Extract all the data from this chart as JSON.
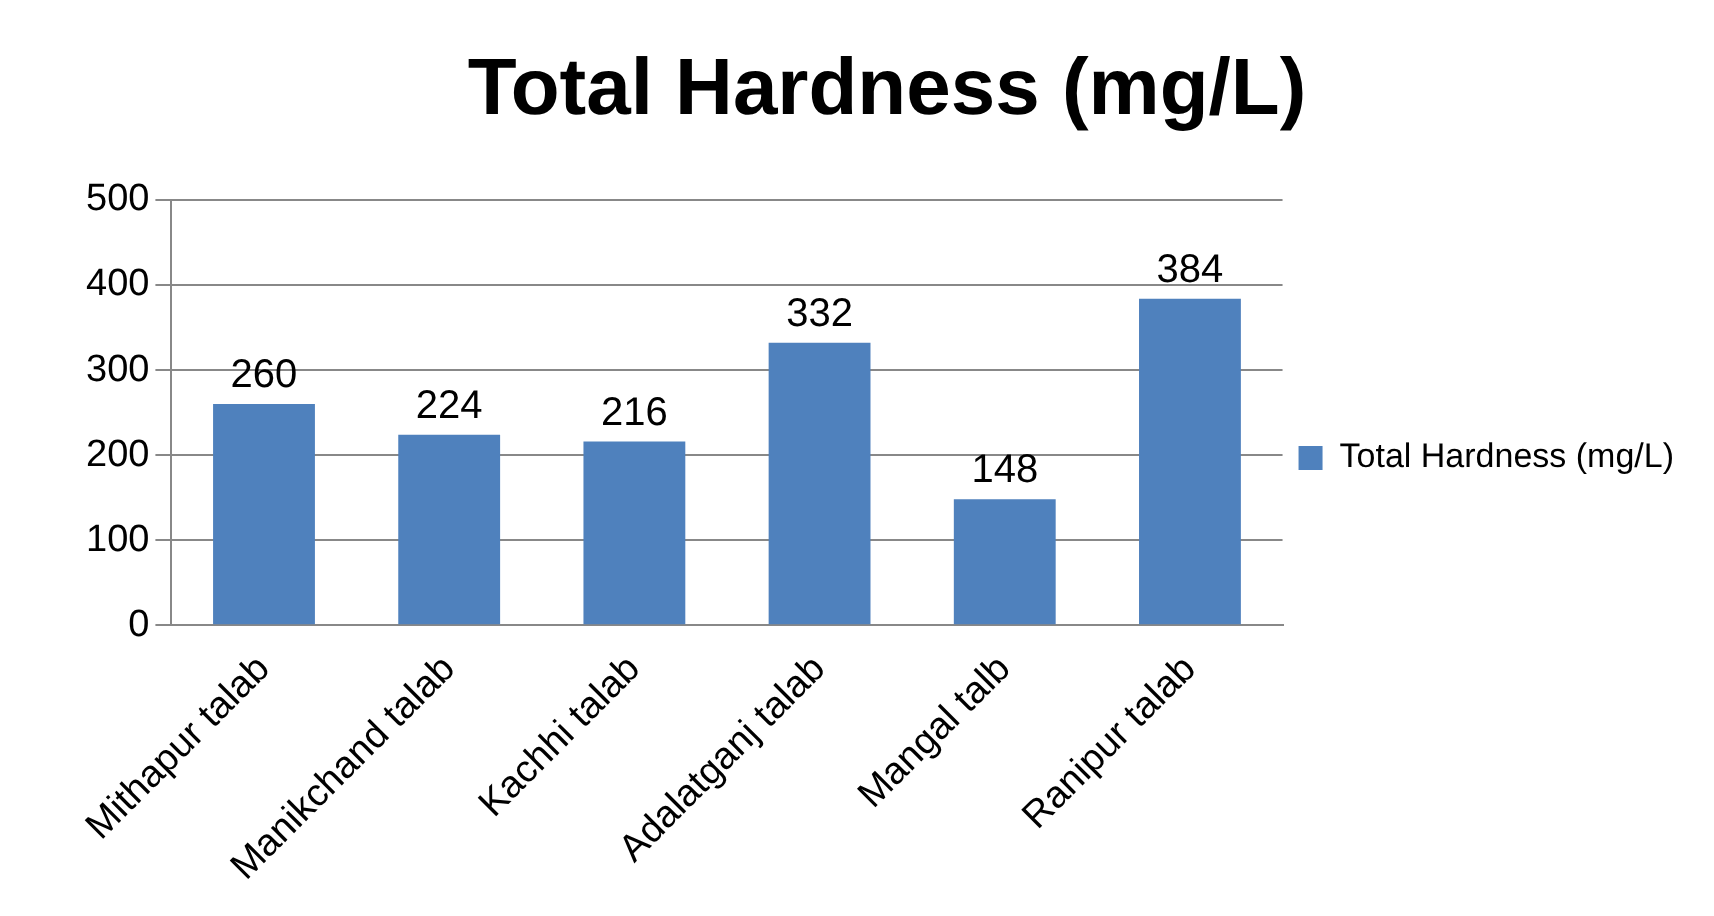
{
  "chart_data": {
    "type": "bar",
    "title": "Total Hardness (mg/L)",
    "categories": [
      "Mithapur talab",
      "Manikchand talab",
      "Kachhi talab",
      "Adalatganj talab",
      "Mangal talb",
      "Ranipur talab"
    ],
    "series": [
      {
        "name": "Total Hardness (mg/L)",
        "color": "#4f81bd",
        "values": [
          260,
          224,
          216,
          332,
          148,
          384
        ]
      }
    ],
    "ylim": [
      0,
      500
    ],
    "yticks": [
      0,
      100,
      200,
      300,
      400,
      500
    ],
    "grid": "y",
    "legend": "right",
    "data_labels": true
  }
}
